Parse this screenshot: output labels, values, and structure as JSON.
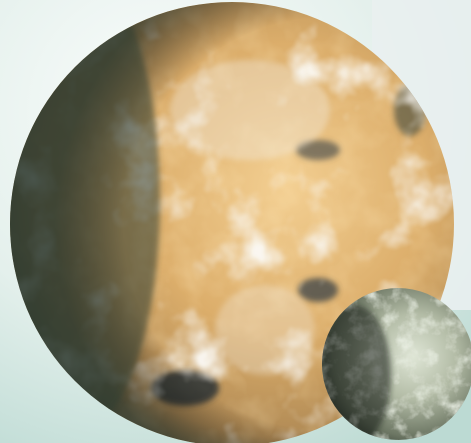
{
  "scene": {
    "subject": "planet-with-moon",
    "colors": {
      "background_light": "#f6faf8",
      "background_teal": "#cfe4df",
      "backdrop_right": "#e8eeee",
      "planet_highlight": "#f1c98a",
      "planet_base": "#d6a866",
      "planet_shadow": "#3f4d40",
      "cloud": "#f4f1ea",
      "dark_patch": "#2b3136",
      "moon_light": "#d7dfcf",
      "moon_base": "#8f9a84",
      "moon_shadow": "#1c241d"
    }
  }
}
